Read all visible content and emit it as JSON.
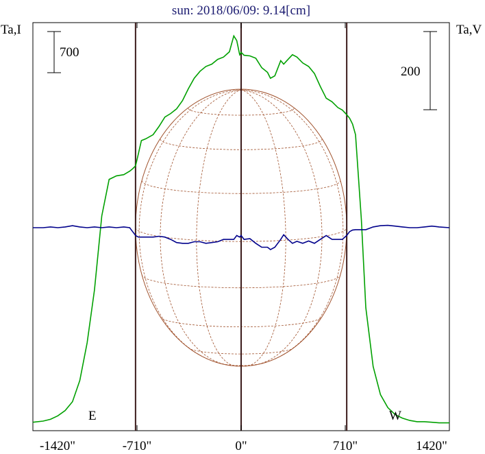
{
  "chart_data": {
    "type": "line",
    "title": "sun: 2018/06/09: 9.14[cm]",
    "left_axis_label": "Ta,I",
    "right_axis_label": "Ta,V",
    "left_scale_bar_label": "700",
    "right_scale_bar_label": "200",
    "east_label": "E",
    "west_label": "W",
    "x_tick_labels": [
      "-1420\"",
      "-710\"",
      "0\"",
      "710\"",
      "1420\""
    ],
    "x_ticks": [
      -1420,
      -710,
      0,
      710,
      1420
    ],
    "xlim": [
      -1420,
      1420
    ],
    "limb_x": [
      -720,
      720
    ],
    "intensity_ylim": [
      0,
      2000
    ],
    "polarization_ylim": [
      -600,
      600
    ],
    "colors": {
      "intensity": "#00a000",
      "polarization": "#00008b",
      "disk": "#a0522d",
      "limb_lines": "#3a1a1a",
      "title": "#1a1a70"
    },
    "series": [
      {
        "key": "intensity",
        "x": [
          -1420,
          -1350,
          -1300,
          -1250,
          -1200,
          -1150,
          -1100,
          -1050,
          -1000,
          -950,
          -900,
          -850,
          -800,
          -760,
          -740,
          -720,
          -700,
          -680,
          -650,
          -600,
          -560,
          -520,
          -480,
          -440,
          -400,
          -360,
          -320,
          -280,
          -240,
          -200,
          -160,
          -120,
          -80,
          -50,
          -30,
          -10,
          0,
          20,
          60,
          100,
          140,
          180,
          200,
          230,
          270,
          290,
          320,
          350,
          380,
          420,
          460,
          500,
          540,
          580,
          620,
          660,
          690,
          720,
          740,
          760,
          780,
          820,
          850,
          900,
          950,
          1000,
          1050,
          1100,
          1150,
          1200,
          1250,
          1300,
          1350,
          1420
        ],
        "y": [
          25,
          35,
          50,
          80,
          125,
          200,
          380,
          700,
          1150,
          1780,
          2090,
          2120,
          2130,
          2160,
          2180,
          2205,
          2310,
          2420,
          2435,
          2470,
          2540,
          2620,
          2650,
          2690,
          2760,
          2860,
          2950,
          3010,
          3050,
          3070,
          3110,
          3130,
          3175,
          3310,
          3270,
          3150,
          3170,
          3145,
          3140,
          3120,
          3040,
          3000,
          2950,
          2970,
          3100,
          3070,
          3110,
          3150,
          3130,
          3080,
          3050,
          2990,
          2880,
          2780,
          2750,
          2700,
          2680,
          2640,
          2610,
          2560,
          2470,
          1750,
          1000,
          500,
          260,
          150,
          90,
          60,
          40,
          30,
          30,
          25,
          20,
          20
        ]
      },
      {
        "key": "polarization",
        "x": [
          -1420,
          -1350,
          -1300,
          -1250,
          -1200,
          -1150,
          -1100,
          -1050,
          -1000,
          -950,
          -900,
          -850,
          -800,
          -760,
          -740,
          -720,
          -700,
          -680,
          -650,
          -600,
          -560,
          -520,
          -480,
          -440,
          -400,
          -360,
          -320,
          -280,
          -240,
          -200,
          -160,
          -120,
          -80,
          -50,
          -30,
          -10,
          0,
          20,
          60,
          100,
          140,
          180,
          200,
          230,
          270,
          290,
          320,
          350,
          380,
          420,
          460,
          500,
          540,
          580,
          620,
          660,
          690,
          720,
          740,
          760,
          780,
          820,
          850,
          900,
          950,
          1000,
          1050,
          1100,
          1150,
          1200,
          1250,
          1300,
          1350,
          1420
        ],
        "y": [
          0,
          0,
          2,
          0,
          2,
          5,
          2,
          0,
          2,
          0,
          2,
          0,
          2,
          0,
          -10,
          -20,
          -24,
          -24,
          -24,
          -24,
          -22,
          -24,
          -30,
          -38,
          -40,
          -40,
          -36,
          -36,
          -40,
          -38,
          -36,
          -30,
          -30,
          -30,
          -20,
          -24,
          -20,
          -30,
          -28,
          -40,
          -50,
          -50,
          -56,
          -50,
          -30,
          -18,
          -30,
          -40,
          -35,
          -40,
          -34,
          -40,
          -30,
          -20,
          -30,
          -30,
          -30,
          -20,
          -10,
          -6,
          -5,
          -5,
          -5,
          2,
          5,
          6,
          4,
          2,
          0,
          0,
          2,
          4,
          2,
          0
        ]
      }
    ]
  }
}
